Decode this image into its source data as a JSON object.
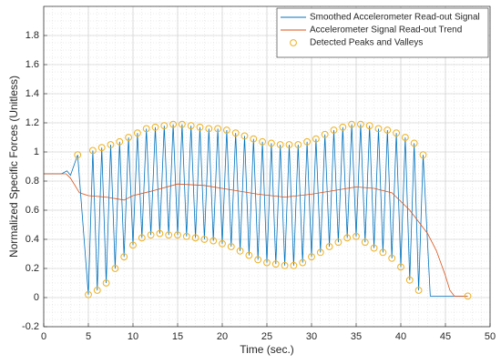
{
  "chart_data": {
    "type": "line",
    "xlabel": "Time (sec.)",
    "ylabel": "Normalized Specific Forces (Unitless)",
    "xlim": [
      0,
      50
    ],
    "ylim": [
      -0.2,
      2
    ],
    "xticks": [
      0,
      5,
      10,
      15,
      20,
      25,
      30,
      35,
      40,
      45,
      50
    ],
    "yticks": [
      -0.2,
      0,
      0.2,
      0.4,
      0.6,
      0.8,
      1,
      1.2,
      1.4,
      1.6,
      1.8
    ],
    "grid": true,
    "minor_grid": true,
    "legend": "upper right",
    "series": [
      {
        "name": "Smoothed Accelerometer Read-out Signal",
        "color": "#0072BD",
        "style": "line",
        "x": [
          0,
          2,
          2.6,
          3,
          3.8,
          5,
          5.5,
          6,
          6.5,
          7,
          7.5,
          8,
          8.5,
          9,
          9.5,
          10,
          10.5,
          11,
          11.5,
          12,
          12.5,
          13,
          13.5,
          14,
          14.5,
          15,
          15.5,
          16,
          16.5,
          17,
          17.5,
          18,
          18.5,
          19,
          19.5,
          20,
          20.5,
          21,
          21.5,
          22,
          22.5,
          23,
          23.5,
          24,
          24.5,
          25,
          25.5,
          26,
          26.5,
          27,
          27.5,
          28,
          28.5,
          29,
          29.5,
          30,
          30.5,
          31,
          31.5,
          32,
          32.5,
          33,
          33.5,
          34,
          34.5,
          35,
          35.5,
          36,
          36.5,
          37,
          37.5,
          38,
          38.5,
          39,
          39.5,
          40,
          40.5,
          41,
          41.5,
          42,
          42.5,
          43.3,
          47.5
        ],
        "y": [
          0.85,
          0.85,
          0.87,
          0.84,
          0.98,
          0.02,
          1.01,
          0.05,
          1.03,
          0.1,
          1.05,
          0.2,
          1.07,
          0.28,
          1.1,
          0.36,
          1.13,
          0.41,
          1.16,
          0.43,
          1.17,
          0.44,
          1.18,
          0.43,
          1.19,
          0.43,
          1.19,
          0.42,
          1.18,
          0.41,
          1.17,
          0.4,
          1.16,
          0.39,
          1.16,
          0.37,
          1.15,
          0.35,
          1.13,
          0.32,
          1.11,
          0.29,
          1.09,
          0.26,
          1.07,
          0.24,
          1.06,
          0.23,
          1.05,
          0.22,
          1.05,
          0.22,
          1.05,
          0.24,
          1.07,
          0.28,
          1.09,
          0.31,
          1.12,
          0.35,
          1.15,
          0.38,
          1.17,
          0.41,
          1.19,
          0.42,
          1.19,
          0.38,
          1.18,
          0.34,
          1.16,
          0.31,
          1.15,
          0.27,
          1.13,
          0.21,
          1.1,
          0.12,
          1.06,
          0.05,
          0.98,
          0.01,
          0.01
        ]
      },
      {
        "name": "Accelerometer Signal Read-out Trend",
        "color": "#D95319",
        "style": "line",
        "x": [
          0,
          2.5,
          3,
          4,
          5,
          7,
          9,
          10,
          12,
          15,
          18,
          21,
          24,
          27,
          30,
          33,
          35,
          37,
          39,
          40,
          41,
          42,
          43,
          44,
          45,
          45.5,
          46,
          47.5
        ],
        "y": [
          0.85,
          0.85,
          0.82,
          0.72,
          0.7,
          0.69,
          0.67,
          0.7,
          0.73,
          0.78,
          0.77,
          0.74,
          0.71,
          0.69,
          0.71,
          0.74,
          0.76,
          0.75,
          0.72,
          0.66,
          0.6,
          0.52,
          0.44,
          0.32,
          0.15,
          0.05,
          0.01,
          0.01
        ]
      },
      {
        "name": "Detected Peaks and Valleys",
        "color": "#EDB120",
        "style": "marker",
        "x": [
          3.8,
          5,
          5.5,
          6,
          6.5,
          7,
          7.5,
          8,
          8.5,
          9,
          9.5,
          10,
          10.5,
          11,
          11.5,
          12,
          12.5,
          13,
          13.5,
          14,
          14.5,
          15,
          15.5,
          16,
          16.5,
          17,
          17.5,
          18,
          18.5,
          19,
          19.5,
          20,
          20.5,
          21,
          21.5,
          22,
          22.5,
          23,
          23.5,
          24,
          24.5,
          25,
          25.5,
          26,
          26.5,
          27,
          27.5,
          28,
          28.5,
          29,
          29.5,
          30,
          30.5,
          31,
          31.5,
          32,
          32.5,
          33,
          33.5,
          34,
          34.5,
          35,
          35.5,
          36,
          36.5,
          37,
          37.5,
          38,
          38.5,
          39,
          39.5,
          40,
          40.5,
          41,
          41.5,
          42,
          42.5,
          47.5
        ],
        "y": [
          0.98,
          0.02,
          1.01,
          0.05,
          1.03,
          0.1,
          1.05,
          0.2,
          1.07,
          0.28,
          1.1,
          0.36,
          1.13,
          0.41,
          1.16,
          0.43,
          1.17,
          0.44,
          1.18,
          0.43,
          1.19,
          0.43,
          1.19,
          0.42,
          1.18,
          0.41,
          1.17,
          0.4,
          1.16,
          0.39,
          1.16,
          0.37,
          1.15,
          0.35,
          1.13,
          0.32,
          1.11,
          0.29,
          1.09,
          0.26,
          1.07,
          0.24,
          1.06,
          0.23,
          1.05,
          0.22,
          1.05,
          0.22,
          1.05,
          0.24,
          1.07,
          0.28,
          1.09,
          0.31,
          1.12,
          0.35,
          1.15,
          0.38,
          1.17,
          0.41,
          1.19,
          0.42,
          1.19,
          0.38,
          1.18,
          0.34,
          1.16,
          0.31,
          1.15,
          0.27,
          1.13,
          0.21,
          1.1,
          0.12,
          1.06,
          0.05,
          0.98,
          0.01
        ]
      }
    ]
  }
}
